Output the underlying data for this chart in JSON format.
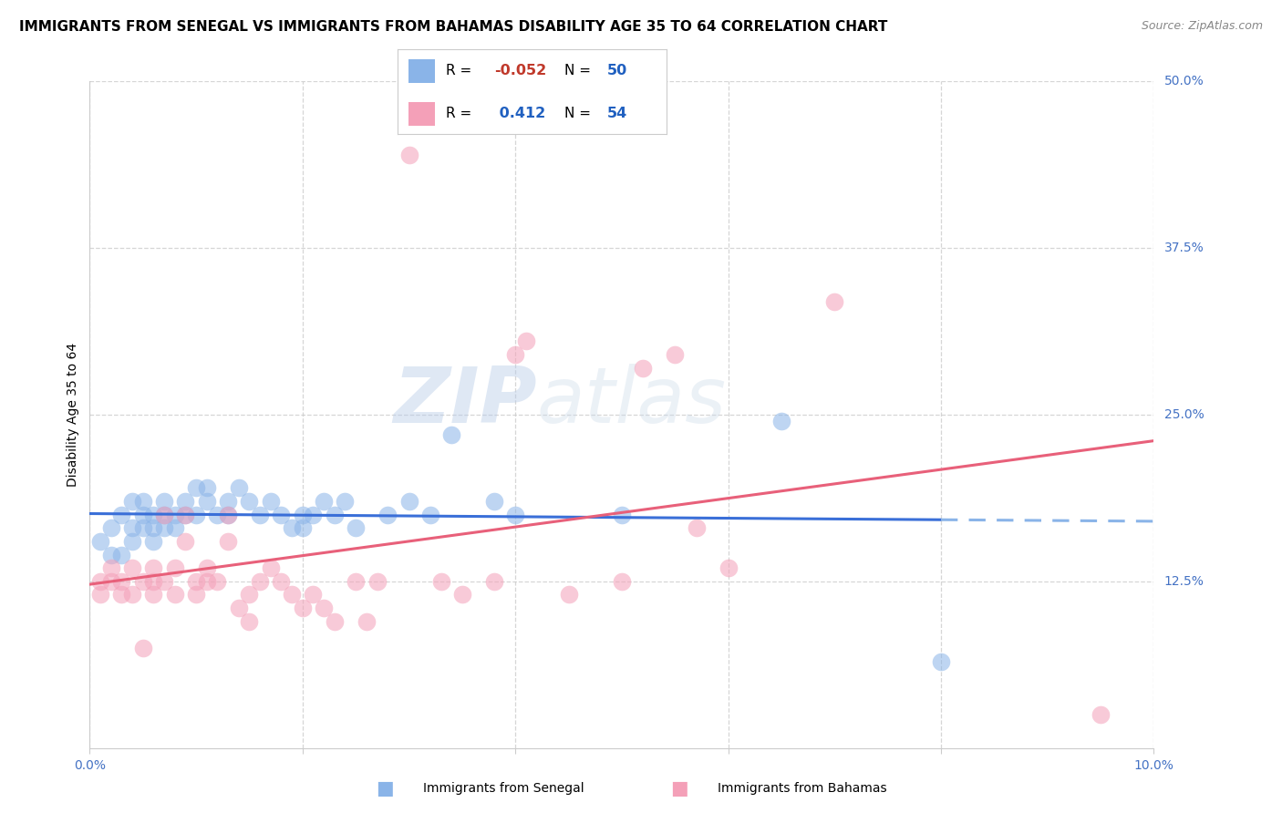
{
  "title": "IMMIGRANTS FROM SENEGAL VS IMMIGRANTS FROM BAHAMAS DISABILITY AGE 35 TO 64 CORRELATION CHART",
  "source": "Source: ZipAtlas.com",
  "ylabel": "Disability Age 35 to 64",
  "xlim": [
    0.0,
    0.1
  ],
  "ylim": [
    0.0,
    0.5
  ],
  "xticks": [
    0.0,
    0.02,
    0.04,
    0.06,
    0.08,
    0.1
  ],
  "yticks_right": [
    0.5,
    0.375,
    0.25,
    0.125
  ],
  "ytick_labels_right": [
    "50.0%",
    "37.5%",
    "25.0%",
    "12.5%"
  ],
  "senegal_color": "#8ab4e8",
  "bahamas_color": "#f4a0b8",
  "senegal_line_color": "#3a6fd8",
  "bahamas_line_color": "#e8607a",
  "R_senegal": -0.052,
  "N_senegal": 50,
  "R_bahamas": 0.412,
  "N_bahamas": 54,
  "watermark_zip": "ZIP",
  "watermark_atlas": "atlas",
  "background_color": "#ffffff",
  "grid_color": "#cccccc",
  "title_fontsize": 11,
  "axis_label_fontsize": 10,
  "tick_fontsize": 10,
  "senegal_points": [
    [
      0.001,
      0.155
    ],
    [
      0.002,
      0.165
    ],
    [
      0.002,
      0.145
    ],
    [
      0.003,
      0.175
    ],
    [
      0.003,
      0.145
    ],
    [
      0.004,
      0.185
    ],
    [
      0.004,
      0.165
    ],
    [
      0.004,
      0.155
    ],
    [
      0.005,
      0.175
    ],
    [
      0.005,
      0.185
    ],
    [
      0.005,
      0.165
    ],
    [
      0.006,
      0.175
    ],
    [
      0.006,
      0.165
    ],
    [
      0.006,
      0.155
    ],
    [
      0.007,
      0.185
    ],
    [
      0.007,
      0.175
    ],
    [
      0.007,
      0.165
    ],
    [
      0.008,
      0.175
    ],
    [
      0.008,
      0.165
    ],
    [
      0.009,
      0.175
    ],
    [
      0.009,
      0.185
    ],
    [
      0.01,
      0.175
    ],
    [
      0.01,
      0.195
    ],
    [
      0.011,
      0.195
    ],
    [
      0.011,
      0.185
    ],
    [
      0.012,
      0.175
    ],
    [
      0.013,
      0.185
    ],
    [
      0.013,
      0.175
    ],
    [
      0.014,
      0.195
    ],
    [
      0.015,
      0.185
    ],
    [
      0.016,
      0.175
    ],
    [
      0.017,
      0.185
    ],
    [
      0.018,
      0.175
    ],
    [
      0.019,
      0.165
    ],
    [
      0.02,
      0.175
    ],
    [
      0.02,
      0.165
    ],
    [
      0.021,
      0.175
    ],
    [
      0.022,
      0.185
    ],
    [
      0.023,
      0.175
    ],
    [
      0.024,
      0.185
    ],
    [
      0.025,
      0.165
    ],
    [
      0.028,
      0.175
    ],
    [
      0.03,
      0.185
    ],
    [
      0.032,
      0.175
    ],
    [
      0.034,
      0.235
    ],
    [
      0.038,
      0.185
    ],
    [
      0.04,
      0.175
    ],
    [
      0.05,
      0.175
    ],
    [
      0.065,
      0.245
    ],
    [
      0.08,
      0.065
    ]
  ],
  "bahamas_points": [
    [
      0.001,
      0.125
    ],
    [
      0.001,
      0.115
    ],
    [
      0.002,
      0.135
    ],
    [
      0.002,
      0.125
    ],
    [
      0.003,
      0.115
    ],
    [
      0.003,
      0.125
    ],
    [
      0.004,
      0.135
    ],
    [
      0.004,
      0.115
    ],
    [
      0.005,
      0.075
    ],
    [
      0.005,
      0.125
    ],
    [
      0.006,
      0.125
    ],
    [
      0.006,
      0.135
    ],
    [
      0.006,
      0.115
    ],
    [
      0.007,
      0.125
    ],
    [
      0.007,
      0.175
    ],
    [
      0.008,
      0.115
    ],
    [
      0.008,
      0.135
    ],
    [
      0.009,
      0.155
    ],
    [
      0.009,
      0.175
    ],
    [
      0.01,
      0.125
    ],
    [
      0.01,
      0.115
    ],
    [
      0.011,
      0.125
    ],
    [
      0.011,
      0.135
    ],
    [
      0.012,
      0.125
    ],
    [
      0.013,
      0.155
    ],
    [
      0.013,
      0.175
    ],
    [
      0.014,
      0.105
    ],
    [
      0.015,
      0.095
    ],
    [
      0.015,
      0.115
    ],
    [
      0.016,
      0.125
    ],
    [
      0.017,
      0.135
    ],
    [
      0.018,
      0.125
    ],
    [
      0.019,
      0.115
    ],
    [
      0.02,
      0.105
    ],
    [
      0.021,
      0.115
    ],
    [
      0.022,
      0.105
    ],
    [
      0.023,
      0.095
    ],
    [
      0.025,
      0.125
    ],
    [
      0.026,
      0.095
    ],
    [
      0.027,
      0.125
    ],
    [
      0.03,
      0.445
    ],
    [
      0.033,
      0.125
    ],
    [
      0.035,
      0.115
    ],
    [
      0.038,
      0.125
    ],
    [
      0.04,
      0.295
    ],
    [
      0.041,
      0.305
    ],
    [
      0.045,
      0.115
    ],
    [
      0.05,
      0.125
    ],
    [
      0.052,
      0.285
    ],
    [
      0.055,
      0.295
    ],
    [
      0.057,
      0.165
    ],
    [
      0.06,
      0.135
    ],
    [
      0.07,
      0.335
    ],
    [
      0.095,
      0.025
    ]
  ]
}
